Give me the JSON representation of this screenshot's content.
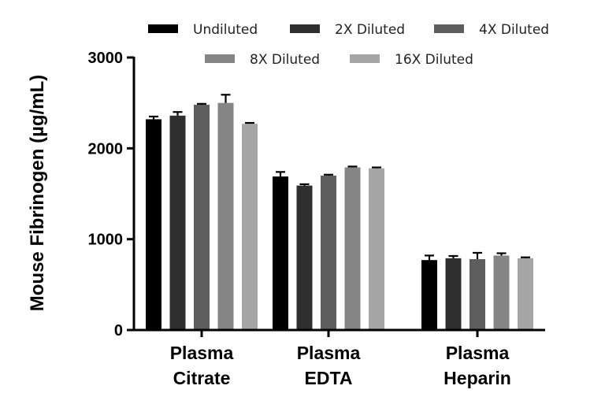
{
  "chart_data": {
    "type": "bar",
    "title": "",
    "xlabel": "",
    "ylabel": "Mouse Fibrinogen (µg/mL)",
    "ylim": [
      0,
      3000
    ],
    "yticks": [
      0,
      1000,
      2000,
      3000
    ],
    "categories": [
      {
        "line1": "Plasma",
        "line2": "Citrate"
      },
      {
        "line1": "Plasma",
        "line2": "EDTA"
      },
      {
        "line1": "Plasma",
        "line2": "Heparin"
      }
    ],
    "legend_position": "top",
    "series": [
      {
        "name": "Undiluted",
        "color": "#000000",
        "values": [
          2320,
          1690,
          770
        ],
        "errors": [
          30,
          50,
          50
        ]
      },
      {
        "name": "2X Diluted",
        "color": "#2f2f2f",
        "values": [
          2360,
          1590,
          790
        ],
        "errors": [
          40,
          15,
          25
        ]
      },
      {
        "name": "4X Diluted",
        "color": "#5e5e5e",
        "values": [
          2480,
          1700,
          780
        ],
        "errors": [
          10,
          10,
          70
        ]
      },
      {
        "name": "8X Diluted",
        "color": "#858585",
        "values": [
          2500,
          1790,
          820
        ],
        "errors": [
          90,
          10,
          25
        ]
      },
      {
        "name": "16X Diluted",
        "color": "#a6a6a6",
        "values": [
          2270,
          1780,
          790
        ],
        "errors": [
          10,
          10,
          10
        ]
      }
    ]
  }
}
